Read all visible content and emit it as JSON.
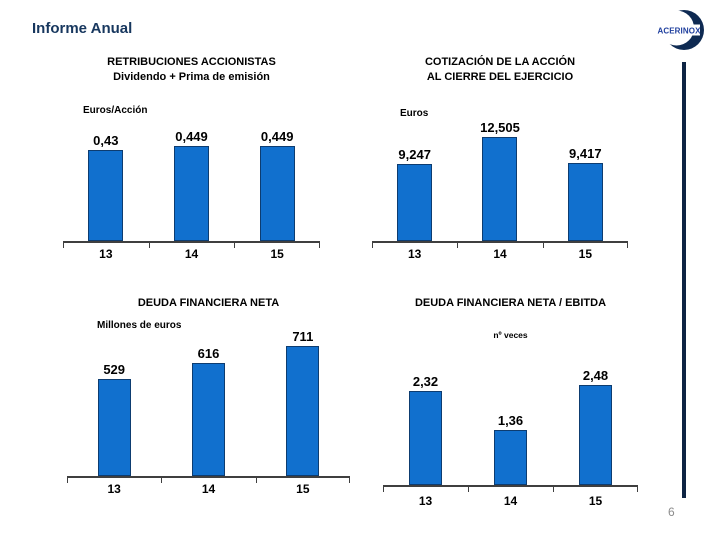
{
  "header": {
    "title": "Informe Anual"
  },
  "logo": {
    "text": "ACERINOX"
  },
  "footer": {
    "page_number": "6"
  },
  "colors": {
    "bar": "#1170CE",
    "bar_border": "#0D3C70",
    "title_navy": "#17375E",
    "axis": "#3F3F3F",
    "divider_navy": "#0E2443",
    "page_number_gray": "#8C8C8C",
    "logo_text_blue": "#1F3F9E"
  },
  "chart_data": [
    {
      "type": "bar",
      "title": "RETRIBUCIONES ACCIONISTAS",
      "subtitle": "Dividendo + Prima de emisión",
      "ylabel": "Euros/Acción",
      "xlabel": "",
      "categories": [
        "13",
        "14",
        "15"
      ],
      "values": [
        0.43,
        0.449,
        0.449
      ],
      "labels": [
        "0,43",
        "0,449",
        "0,449"
      ],
      "ylim": [
        0,
        0.449
      ],
      "grid": false,
      "legend": false
    },
    {
      "type": "bar",
      "title": "COTIZACIÓN DE LA ACCIÓN",
      "subtitle": "AL CIERRE DEL EJERCICIO",
      "ylabel": "Euros",
      "xlabel": "",
      "categories": [
        "13",
        "14",
        "15"
      ],
      "values": [
        9.247,
        12.505,
        9.417
      ],
      "labels": [
        "9,247",
        "12,505",
        "9,417"
      ],
      "ylim": [
        0,
        12.505
      ],
      "grid": false,
      "legend": false
    },
    {
      "type": "bar",
      "title": "DEUDA FINANCIERA NETA",
      "subtitle": "",
      "ylabel": "Millones de euros",
      "xlabel": "",
      "categories": [
        "13",
        "14",
        "15"
      ],
      "values": [
        529,
        616,
        711
      ],
      "labels": [
        "529",
        "616",
        "711"
      ],
      "ylim": [
        0,
        711
      ],
      "grid": false,
      "legend": false
    },
    {
      "type": "bar",
      "title": "DEUDA FINANCIERA NETA / EBITDA",
      "subtitle": "",
      "ylabel": "nº veces",
      "xlabel": "",
      "categories": [
        "13",
        "14",
        "15"
      ],
      "values": [
        2.32,
        1.36,
        2.48
      ],
      "labels": [
        "2,32",
        "1,36",
        "2,48"
      ],
      "ylim": [
        0,
        2.48
      ],
      "grid": false,
      "legend": false
    }
  ]
}
